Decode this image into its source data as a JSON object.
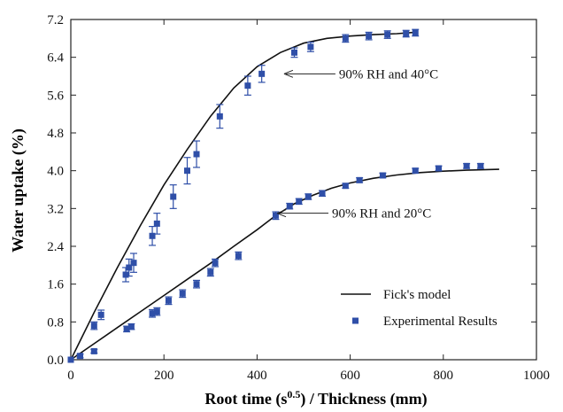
{
  "chart_data": {
    "type": "scatter",
    "xlabel_main": "Root time (s",
    "xlabel_sup": "0.5",
    "xlabel_tail": ") / Thickness (mm)",
    "ylabel": "Water uptake (%)",
    "xlim": [
      0,
      1000
    ],
    "ylim": [
      0,
      7.2
    ],
    "xticks": [
      0,
      200,
      400,
      600,
      800,
      1000
    ],
    "xtick_labels": [
      "0",
      "200",
      "400",
      "600",
      "800",
      "1000"
    ],
    "yticks": [
      0,
      0.8,
      1.6,
      2.4,
      3.2,
      4.0,
      4.8,
      5.6,
      6.4,
      7.2
    ],
    "ytick_labels": [
      "0.0",
      "0.8",
      "1.6",
      "2.4",
      "3.2",
      "4.0",
      "4.8",
      "5.6",
      "6.4",
      "7.2"
    ],
    "grid": false,
    "legend_position": "bottom-right",
    "legend": {
      "model_label": "Fick's model",
      "exp_label": "Experimental Results"
    },
    "annotations": [
      {
        "text": "90% RH and 40°C",
        "at": [
          458,
          6.05
        ]
      },
      {
        "text": "90% RH and 20°C",
        "at": [
          443,
          3.1
        ]
      }
    ],
    "colors": {
      "points": "#2f4fa8",
      "model": "#111111"
    },
    "series": [
      {
        "kind": "model",
        "x": [
          0,
          50,
          100,
          150,
          200,
          250,
          300,
          350,
          400,
          450,
          500,
          550,
          600,
          650,
          700,
          740
        ],
        "values": [
          0,
          1.0,
          1.95,
          2.85,
          3.7,
          4.45,
          5.15,
          5.75,
          6.2,
          6.5,
          6.7,
          6.8,
          6.85,
          6.88,
          6.9,
          6.93
        ]
      },
      {
        "kind": "model",
        "x": [
          0,
          50,
          100,
          150,
          200,
          250,
          300,
          350,
          400,
          440,
          480,
          520,
          560,
          600,
          650,
          700,
          750,
          800,
          850,
          920
        ],
        "values": [
          0,
          0.34,
          0.68,
          1.02,
          1.36,
          1.7,
          2.04,
          2.4,
          2.75,
          3.05,
          3.3,
          3.48,
          3.63,
          3.74,
          3.84,
          3.91,
          3.96,
          3.99,
          4.01,
          4.03
        ]
      },
      {
        "kind": "experimental",
        "x": [
          0,
          50,
          65,
          118,
          125,
          135,
          175,
          185,
          220,
          250,
          270,
          320,
          380,
          410,
          480,
          515,
          590,
          640,
          680,
          720,
          740
        ],
        "values": [
          0,
          0.72,
          0.95,
          1.8,
          1.95,
          2.05,
          2.62,
          2.88,
          3.45,
          4.0,
          4.35,
          5.15,
          5.8,
          6.05,
          6.5,
          6.62,
          6.8,
          6.85,
          6.88,
          6.9,
          6.92
        ],
        "errors": [
          0,
          0.08,
          0.1,
          0.15,
          0.18,
          0.2,
          0.2,
          0.22,
          0.25,
          0.28,
          0.28,
          0.25,
          0.2,
          0.18,
          0.1,
          0.1,
          0.08,
          0.08,
          0.08,
          0.07,
          0.07
        ]
      },
      {
        "kind": "experimental",
        "x": [
          20,
          50,
          120,
          130,
          175,
          185,
          210,
          240,
          270,
          300,
          310,
          360,
          440,
          470,
          490,
          510,
          540,
          590,
          620,
          670,
          740,
          790,
          850,
          880
        ],
        "values": [
          0.08,
          0.18,
          0.65,
          0.7,
          0.98,
          1.02,
          1.25,
          1.4,
          1.6,
          1.85,
          2.05,
          2.2,
          3.05,
          3.25,
          3.35,
          3.45,
          3.52,
          3.68,
          3.8,
          3.9,
          4.0,
          4.05,
          4.1,
          4.1
        ],
        "errors": [
          0.04,
          0.04,
          0.06,
          0.06,
          0.08,
          0.08,
          0.08,
          0.08,
          0.08,
          0.08,
          0.08,
          0.08,
          0.08,
          0.06,
          0.06,
          0.06,
          0.06,
          0.05,
          0.05,
          0.05,
          0.05,
          0.05,
          0.05,
          0.05
        ]
      }
    ]
  }
}
